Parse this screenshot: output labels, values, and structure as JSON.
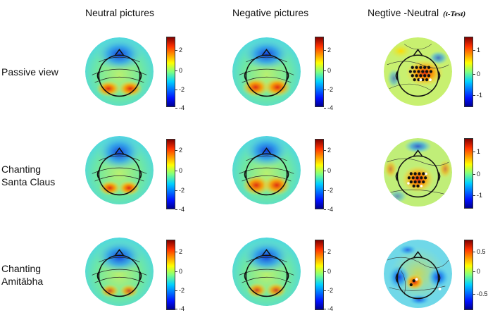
{
  "columns": {
    "neutral": "Neutral pictures",
    "negative": "Negative pictures",
    "diff": "Negtive -Neutral",
    "diff_note": "(t-Test)"
  },
  "rows": {
    "r1": "Passive view",
    "r2_line1": "Chanting",
    "r2_line2": "Santa Claus",
    "r3_line1": "Chanting",
    "r3_line2": "Amitābha"
  },
  "colorbars": {
    "amplitude": {
      "top": "2",
      "mid": "0",
      "low": "-2",
      "bottom": "-4"
    },
    "ttest_r1": {
      "top": "1",
      "mid": "0",
      "bottom": "-1"
    },
    "ttest_r2": {
      "top": "1",
      "mid": "0",
      "bottom": "-1"
    },
    "ttest_r3": {
      "top": "0.5",
      "mid": "0",
      "bottom": "-0.5"
    }
  },
  "colormap": "jet"
}
